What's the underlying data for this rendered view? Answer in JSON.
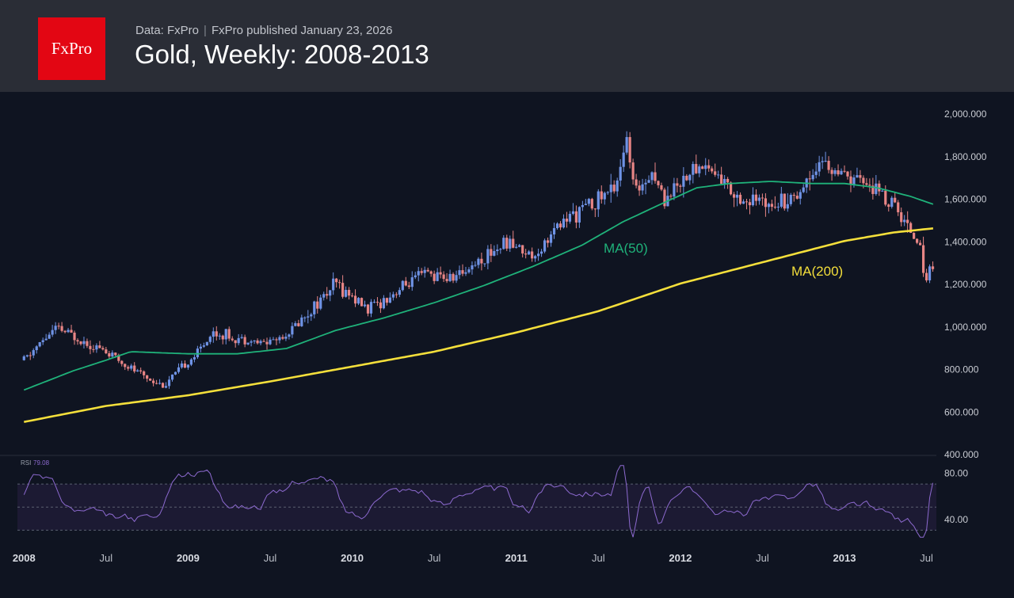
{
  "header": {
    "logo": "FxPro",
    "source": "Data: FxPro",
    "published": "FxPro published January 23, 2026",
    "title": "Gold, Weekly: 2008-2013"
  },
  "colors": {
    "background": "#0f1421",
    "header": "#2a2d36",
    "logo": "#e30613",
    "up_candle": "#6f93e6",
    "down_candle": "#e88585",
    "ma50": "#1fb27a",
    "ma200": "#f4df3b",
    "rsi_line": "#8d6ad0",
    "rsi_band": "#1c1a33"
  },
  "chart_data": {
    "type": "candlestick",
    "interval": "weekly",
    "x_range": [
      "2008-01",
      "2013-08"
    ],
    "x_tick_labels": [
      "2008",
      "Jul",
      "2009",
      "Jul",
      "2010",
      "Jul",
      "2011",
      "Jul",
      "2012",
      "Jul",
      "2013",
      "Jul"
    ],
    "price_axis": {
      "ylim": [
        400,
        2000
      ],
      "tick_labels": [
        "2,000.000",
        "1,800.000",
        "1,600.000",
        "1,400.000",
        "1,200.000",
        "1,000.000",
        "800.000",
        "600.000",
        "400.000"
      ]
    },
    "price_anchors": {
      "x": [
        2008.0,
        2008.15,
        2008.2,
        2008.45,
        2008.7,
        2008.85,
        2009.05,
        2009.15,
        2009.45,
        2009.6,
        2009.9,
        2010.1,
        2010.45,
        2010.6,
        2010.95,
        2011.1,
        2011.3,
        2011.6,
        2011.67,
        2011.72,
        2011.82,
        2011.9,
        2012.05,
        2012.15,
        2012.4,
        2012.7,
        2012.85,
        2013.0,
        2013.15,
        2013.3,
        2013.45,
        2013.5,
        2013.55
      ],
      "y": [
        840,
        960,
        990,
        900,
        780,
        720,
        870,
        970,
        920,
        960,
        1200,
        1080,
        1250,
        1220,
        1400,
        1330,
        1500,
        1650,
        1880,
        1620,
        1740,
        1600,
        1720,
        1760,
        1580,
        1610,
        1780,
        1690,
        1670,
        1560,
        1400,
        1220,
        1320
      ]
    },
    "series": [
      {
        "name": "MA(50)",
        "x": [
          2008.0,
          2008.3,
          2008.5,
          2008.65,
          2009.0,
          2009.3,
          2009.6,
          2009.9,
          2010.2,
          2010.5,
          2010.8,
          2011.1,
          2011.4,
          2011.65,
          2011.9,
          2012.1,
          2012.3,
          2012.55,
          2012.8,
          2013.0,
          2013.2,
          2013.4,
          2013.55
        ],
        "values": [
          700,
          790,
          840,
          880,
          870,
          870,
          895,
          980,
          1040,
          1110,
          1190,
          1280,
          1380,
          1490,
          1580,
          1650,
          1670,
          1680,
          1670,
          1670,
          1650,
          1610,
          1570
        ]
      },
      {
        "name": "MA(200)",
        "x": [
          2008.0,
          2008.5,
          2009.0,
          2009.5,
          2010.0,
          2010.5,
          2011.0,
          2011.5,
          2012.0,
          2012.5,
          2013.0,
          2013.3,
          2013.55
        ],
        "values": [
          550,
          625,
          675,
          740,
          810,
          880,
          970,
          1070,
          1200,
          1300,
          1400,
          1440,
          1460
        ]
      }
    ],
    "rsi": {
      "label": "RSI",
      "value": "79.08",
      "ylim": [
        20,
        90
      ],
      "tick_labels": [
        "80.00",
        "40.00"
      ],
      "bands": [
        70,
        30
      ],
      "midline": 50
    },
    "annotations": [
      "MA(50)",
      "MA(200)"
    ],
    "grid": false
  }
}
